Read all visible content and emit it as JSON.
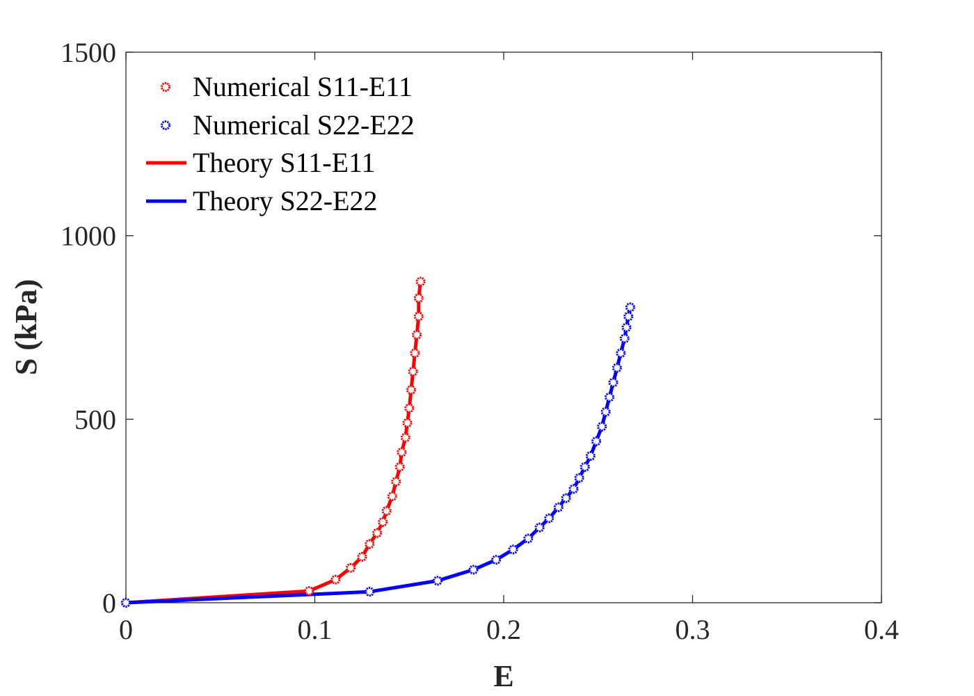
{
  "chart_data": {
    "type": "line",
    "xlabel": "E",
    "ylabel": "S (kPa)",
    "xlim": [
      0,
      0.4
    ],
    "ylim": [
      0,
      1500
    ],
    "xticks": [
      0,
      0.1,
      0.2,
      0.3,
      0.4
    ],
    "xtick_labels": [
      "0",
      "0.1",
      "0.2",
      "0.3",
      "0.4"
    ],
    "yticks": [
      0,
      500,
      1000,
      1500
    ],
    "ytick_labels": [
      "0",
      "500",
      "1000",
      "1500"
    ],
    "grid": false,
    "legend_position": "top-left",
    "series": [
      {
        "name": "Numerical S11-E11",
        "kind": "markers",
        "marker": "circle",
        "color": "#ff0000",
        "x": [
          0,
          0.097,
          0.111,
          0.119,
          0.125,
          0.129,
          0.133,
          0.136,
          0.138,
          0.141,
          0.143,
          0.145,
          0.146,
          0.148,
          0.149,
          0.15,
          0.151,
          0.152,
          0.153,
          0.154,
          0.155,
          0.155,
          0.156
        ],
        "y": [
          0,
          32,
          63,
          95,
          125,
          160,
          190,
          220,
          250,
          290,
          330,
          370,
          410,
          450,
          490,
          530,
          580,
          630,
          680,
          730,
          780,
          830,
          875
        ]
      },
      {
        "name": "Numerical S22-E22",
        "kind": "markers",
        "marker": "circle",
        "color": "#0000ff",
        "x": [
          0,
          0.129,
          0.165,
          0.184,
          0.196,
          0.205,
          0.213,
          0.219,
          0.224,
          0.229,
          0.233,
          0.237,
          0.24,
          0.243,
          0.246,
          0.249,
          0.252,
          0.254,
          0.256,
          0.258,
          0.26,
          0.262,
          0.264,
          0.265,
          0.266,
          0.267
        ],
        "y": [
          0,
          30,
          60,
          90,
          117,
          145,
          175,
          205,
          230,
          260,
          285,
          310,
          340,
          370,
          400,
          440,
          480,
          520,
          560,
          600,
          640,
          680,
          720,
          750,
          780,
          805
        ]
      },
      {
        "name": "Theory S11-E11",
        "kind": "line",
        "color": "#ff0000",
        "x": [
          0,
          0.097,
          0.111,
          0.119,
          0.125,
          0.129,
          0.133,
          0.136,
          0.138,
          0.141,
          0.143,
          0.145,
          0.146,
          0.148,
          0.149,
          0.15,
          0.151,
          0.152,
          0.153,
          0.154,
          0.155,
          0.155,
          0.156
        ],
        "y": [
          0,
          32,
          63,
          95,
          125,
          160,
          190,
          220,
          250,
          290,
          330,
          370,
          410,
          450,
          490,
          530,
          580,
          630,
          680,
          730,
          780,
          830,
          875
        ]
      },
      {
        "name": "Theory S22-E22",
        "kind": "line",
        "color": "#0000ff",
        "x": [
          0,
          0.129,
          0.165,
          0.184,
          0.196,
          0.205,
          0.213,
          0.219,
          0.224,
          0.229,
          0.233,
          0.237,
          0.24,
          0.243,
          0.246,
          0.249,
          0.252,
          0.254,
          0.256,
          0.258,
          0.26,
          0.262,
          0.264,
          0.265,
          0.266,
          0.267
        ],
        "y": [
          0,
          30,
          60,
          90,
          117,
          145,
          175,
          205,
          230,
          260,
          285,
          310,
          340,
          370,
          400,
          440,
          480,
          520,
          560,
          600,
          640,
          680,
          720,
          750,
          780,
          805
        ]
      }
    ]
  }
}
